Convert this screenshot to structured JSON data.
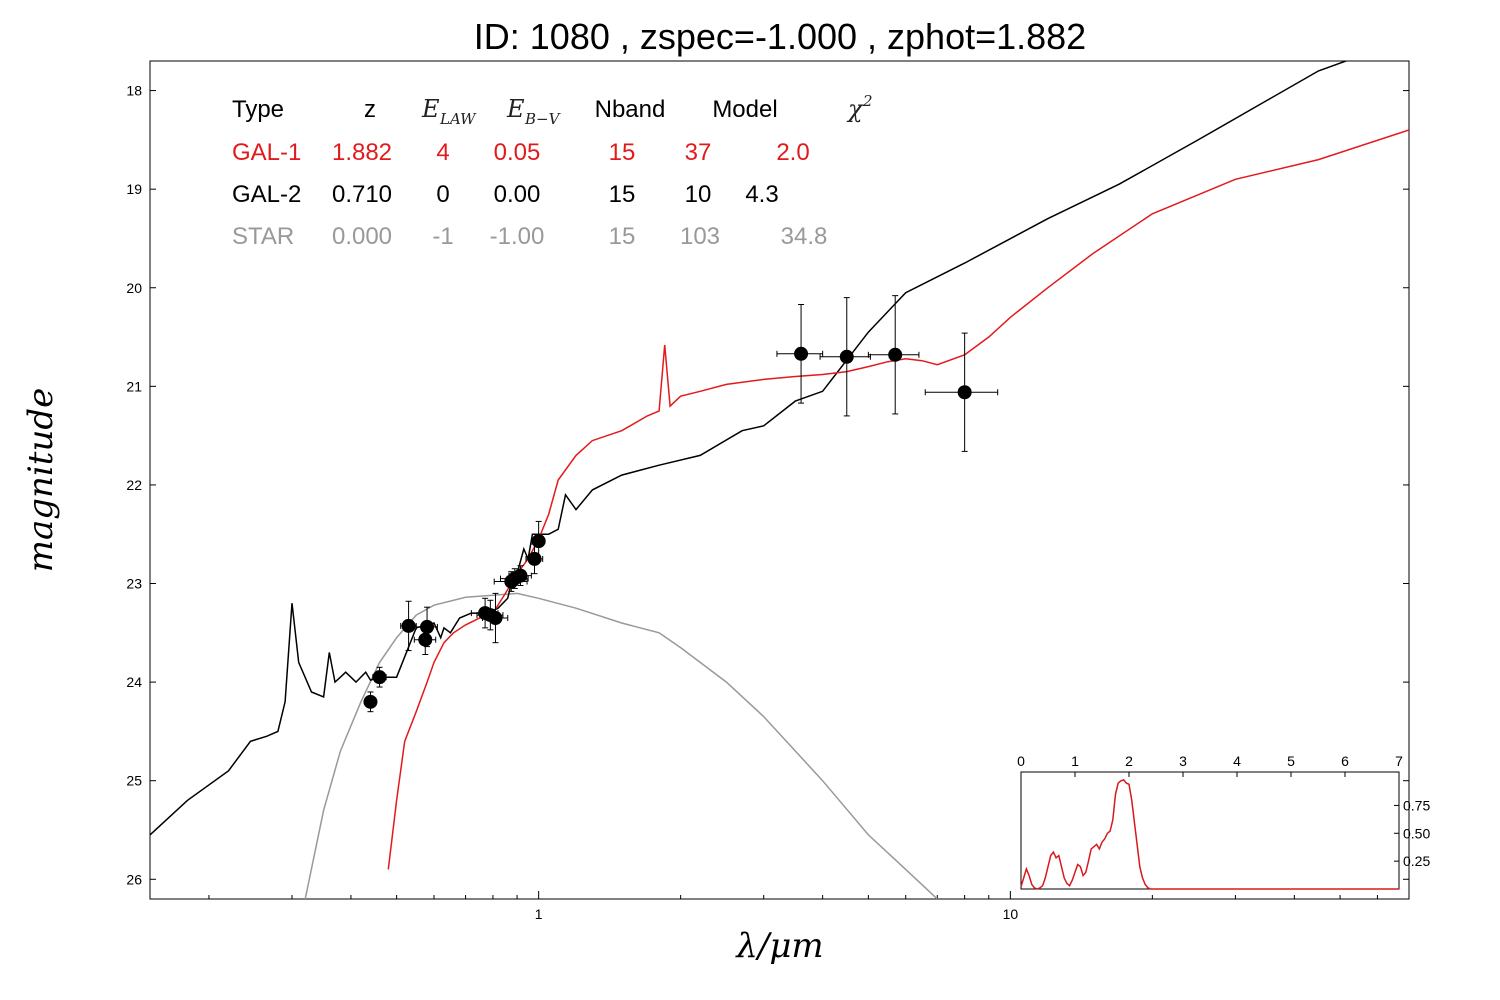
{
  "title": "ID:  1080  , zspec=-1.000 , zphot=1.882",
  "colors": {
    "gal1": "#e31a1c",
    "gal2": "#000000",
    "star": "#999999",
    "points": "#000000",
    "inset": "#d7191c"
  },
  "chart_data": [
    {
      "type": "line",
      "xlabel": "λ/μm",
      "ylabel": "magnitude",
      "x_scale": "log",
      "xlim": [
        0.15,
        70
      ],
      "ylim": [
        26.2,
        17.7
      ],
      "x_ticks": [
        1,
        10
      ],
      "y_ticks": [
        18,
        19,
        20,
        21,
        22,
        23,
        24,
        25,
        26
      ],
      "grid": false,
      "legend_table": {
        "headers": [
          "Type",
          "z",
          "E_LAW",
          "E_B-V",
          "Nband",
          "Model",
          "χ²"
        ],
        "rows": [
          {
            "series": "gal1",
            "cells": [
              "GAL-1",
              "1.882",
              "4",
              "0.05",
              "15",
              "37",
              "2.0"
            ]
          },
          {
            "series": "gal2",
            "cells": [
              "GAL-2",
              "0.710",
              "0",
              "0.00",
              "15",
              "10",
              "4.3"
            ]
          },
          {
            "series": "star",
            "cells": [
              "STAR",
              "0.000",
              "-1",
              "-1.00",
              "15",
              "103",
              "34.8"
            ]
          }
        ]
      },
      "series": [
        {
          "key": "gal2",
          "x": [
            0.15,
            0.18,
            0.22,
            0.245,
            0.265,
            0.28,
            0.29,
            0.3,
            0.31,
            0.33,
            0.35,
            0.36,
            0.37,
            0.38,
            0.39,
            0.41,
            0.43,
            0.44,
            0.46,
            0.48,
            0.5,
            0.55,
            0.6,
            0.62,
            0.63,
            0.65,
            0.68,
            0.72,
            0.78,
            0.82,
            0.86,
            0.88,
            0.9,
            0.93,
            0.95,
            0.97,
            1.0,
            1.05,
            1.1,
            1.14,
            1.2,
            1.3,
            1.5,
            1.8,
            2.2,
            2.7,
            3.0,
            3.5,
            4.0,
            5.0,
            6.0,
            8.0,
            12.0,
            17.0,
            25.0,
            35.0,
            45.0,
            55.0
          ],
          "y": [
            25.55,
            25.2,
            24.9,
            24.6,
            24.55,
            24.5,
            24.2,
            23.2,
            23.8,
            24.1,
            24.15,
            23.7,
            24.0,
            23.95,
            23.9,
            24.0,
            23.9,
            23.98,
            23.95,
            23.95,
            23.95,
            23.45,
            23.4,
            23.55,
            23.45,
            23.5,
            23.35,
            23.3,
            23.3,
            23.25,
            23.15,
            22.95,
            22.9,
            22.65,
            22.75,
            22.5,
            22.5,
            22.5,
            22.45,
            22.1,
            22.25,
            22.05,
            21.9,
            21.8,
            21.7,
            21.45,
            21.4,
            21.15,
            21.05,
            20.45,
            20.05,
            19.75,
            19.3,
            18.95,
            18.5,
            18.1,
            17.8,
            17.65
          ]
        },
        {
          "key": "gal1",
          "x": [
            0.48,
            0.5,
            0.52,
            0.55,
            0.58,
            0.6,
            0.63,
            0.66,
            0.7,
            0.75,
            0.8,
            0.85,
            0.9,
            0.95,
            1.0,
            1.05,
            1.1,
            1.2,
            1.3,
            1.5,
            1.7,
            1.8,
            1.85,
            1.9,
            1.95,
            2.0,
            2.2,
            2.5,
            3.0,
            3.5,
            4.0,
            4.5,
            5.0,
            5.5,
            6.0,
            6.5,
            7.0,
            8.0,
            9.0,
            10.0,
            12.0,
            15.0,
            20.0,
            30.0,
            45.0,
            70.0
          ],
          "y": [
            25.9,
            25.2,
            24.6,
            24.3,
            24.0,
            23.8,
            23.6,
            23.5,
            23.42,
            23.35,
            23.3,
            23.1,
            22.9,
            22.75,
            22.55,
            22.3,
            21.95,
            21.7,
            21.55,
            21.45,
            21.3,
            21.25,
            20.58,
            21.2,
            21.15,
            21.1,
            21.05,
            20.98,
            20.93,
            20.9,
            20.88,
            20.85,
            20.8,
            20.75,
            20.72,
            20.74,
            20.78,
            20.68,
            20.5,
            20.3,
            20.0,
            19.65,
            19.25,
            18.9,
            18.7,
            18.4
          ]
        },
        {
          "key": "star",
          "x": [
            0.32,
            0.35,
            0.38,
            0.42,
            0.46,
            0.5,
            0.55,
            0.6,
            0.7,
            0.8,
            0.9,
            1.0,
            1.2,
            1.5,
            1.8,
            2.0,
            2.5,
            3.0,
            4.0,
            5.0,
            6.0,
            7.0
          ],
          "y": [
            26.2,
            25.3,
            24.7,
            24.2,
            23.8,
            23.55,
            23.32,
            23.22,
            23.14,
            23.12,
            23.1,
            23.15,
            23.25,
            23.4,
            23.5,
            23.65,
            24.0,
            24.35,
            25.0,
            25.55,
            25.9,
            26.2
          ]
        }
      ],
      "photometry": [
        {
          "x": 0.44,
          "y": 24.2,
          "xerr": 0.01,
          "yerr": 0.1
        },
        {
          "x": 0.46,
          "y": 23.95,
          "xerr": 0.015,
          "yerr": 0.1
        },
        {
          "x": 0.53,
          "y": 23.43,
          "xerr": 0.02,
          "yerr": 0.25
        },
        {
          "x": 0.58,
          "y": 23.44,
          "xerr": 0.03,
          "yerr": 0.2
        },
        {
          "x": 0.575,
          "y": 23.57,
          "xerr": 0.03,
          "yerr": 0.15
        },
        {
          "x": 0.77,
          "y": 23.3,
          "xerr": 0.05,
          "yerr": 0.15
        },
        {
          "x": 0.79,
          "y": 23.32,
          "xerr": 0.05,
          "yerr": 0.15
        },
        {
          "x": 0.81,
          "y": 23.35,
          "xerr": 0.05,
          "yerr": 0.25
        },
        {
          "x": 0.875,
          "y": 22.98,
          "xerr": 0.07,
          "yerr": 0.1
        },
        {
          "x": 0.89,
          "y": 22.95,
          "xerr": 0.06,
          "yerr": 0.1
        },
        {
          "x": 0.915,
          "y": 22.92,
          "xerr": 0.05,
          "yerr": 0.1
        },
        {
          "x": 0.98,
          "y": 22.75,
          "xerr": 0.04,
          "yerr": 0.15
        },
        {
          "x": 1.0,
          "y": 22.57,
          "xerr": 0.03,
          "yerr": 0.2
        },
        {
          "x": 3.6,
          "y": 20.67,
          "xerr": 0.4,
          "yerr": 0.5
        },
        {
          "x": 4.5,
          "y": 20.7,
          "xerr": 0.55,
          "yerr": 0.6
        },
        {
          "x": 5.7,
          "y": 20.68,
          "xerr": 0.7,
          "yerr": 0.6
        },
        {
          "x": 8.0,
          "y": 21.06,
          "xerr": 1.4,
          "yerr": 0.6
        }
      ]
    },
    {
      "type": "line",
      "title": "",
      "xlabel": "",
      "ylabel": "",
      "xlim": [
        0,
        7
      ],
      "ylim": [
        0,
        1.05
      ],
      "x_ticks": [
        0,
        1,
        2,
        3,
        4,
        5,
        6,
        7
      ],
      "y_ticks": [
        0.25,
        0.5,
        0.75
      ],
      "y_tick_labels": [
        "0.25",
        "0.50",
        "0.75"
      ],
      "series": [
        {
          "key": "inset",
          "x": [
            0,
            0.05,
            0.1,
            0.15,
            0.2,
            0.25,
            0.3,
            0.35,
            0.4,
            0.45,
            0.5,
            0.55,
            0.6,
            0.65,
            0.7,
            0.75,
            0.8,
            0.85,
            0.9,
            0.95,
            1.0,
            1.05,
            1.1,
            1.15,
            1.2,
            1.25,
            1.3,
            1.35,
            1.4,
            1.45,
            1.5,
            1.55,
            1.6,
            1.65,
            1.7,
            1.75,
            1.8,
            1.85,
            1.9,
            1.95,
            2.0,
            2.05,
            2.1,
            2.15,
            2.2,
            2.25,
            2.3,
            2.35,
            2.4,
            2.5,
            3.0,
            4.0,
            5.0,
            6.0,
            7.0
          ],
          "y": [
            0.02,
            0.1,
            0.18,
            0.12,
            0.04,
            0.01,
            0.0,
            0.01,
            0.03,
            0.1,
            0.2,
            0.3,
            0.33,
            0.28,
            0.3,
            0.2,
            0.1,
            0.05,
            0.03,
            0.08,
            0.15,
            0.22,
            0.2,
            0.12,
            0.15,
            0.25,
            0.36,
            0.38,
            0.4,
            0.36,
            0.42,
            0.45,
            0.5,
            0.52,
            0.62,
            0.85,
            0.95,
            0.97,
            0.98,
            0.95,
            0.94,
            0.8,
            0.6,
            0.4,
            0.2,
            0.1,
            0.04,
            0.01,
            0.0,
            0.0,
            0.0,
            0.0,
            0.0,
            0.0,
            0.0
          ]
        }
      ]
    }
  ]
}
